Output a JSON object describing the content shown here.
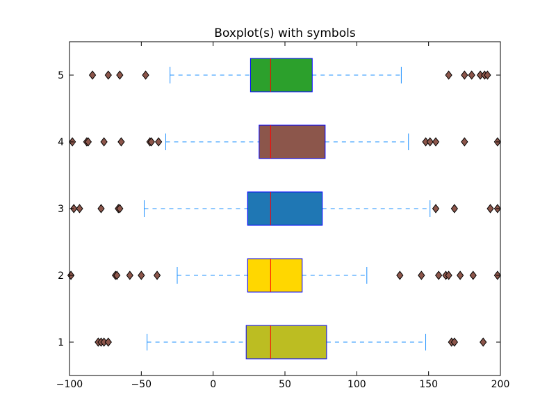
{
  "chart_data": {
    "type": "boxplot",
    "orientation": "horizontal",
    "title": "Boxplot(s) with symbols",
    "xlabel": "",
    "ylabel": "",
    "xlim": [
      -100,
      200
    ],
    "ylim": [
      0.5,
      5.5
    ],
    "x_ticks": [
      -100,
      -50,
      0,
      50,
      100,
      150,
      200
    ],
    "x_tick_labels": [
      "−100",
      "−50",
      "0",
      "50",
      "100",
      "150",
      "200"
    ],
    "y_ticks": [
      1,
      2,
      3,
      4,
      5
    ],
    "y_tick_labels": [
      "1",
      "2",
      "3",
      "4",
      "5"
    ],
    "grid": false,
    "median_color": "#ff0000",
    "box_edge_color": "#0000ff",
    "whisker_color": "#1e90ff",
    "flier_color": "#8c564b",
    "flier_marker": "diamond",
    "boxes": [
      {
        "position": 1,
        "whislo": -46,
        "q1": 23,
        "median": 40,
        "q3": 79,
        "whishi": 148,
        "fliers": [
          -80,
          -78,
          -76,
          -73,
          166,
          168,
          188
        ],
        "color": "#bcbd22"
      },
      {
        "position": 2,
        "whislo": -25,
        "q1": 24,
        "median": 40,
        "q3": 62,
        "whishi": 107,
        "fliers": [
          -99,
          -68,
          -67,
          -58,
          -50,
          -39,
          130,
          145,
          157,
          162,
          164,
          172,
          181,
          198
        ],
        "color": "#ffd700"
      },
      {
        "position": 3,
        "whislo": -48,
        "q1": 24,
        "median": 40,
        "q3": 76,
        "whishi": 151,
        "fliers": [
          -97,
          -93,
          -78,
          -66,
          -65,
          155,
          168,
          193,
          198
        ],
        "color": "#1f77b4"
      },
      {
        "position": 4,
        "whislo": -33,
        "q1": 32,
        "median": 40,
        "q3": 78,
        "whishi": 136,
        "fliers": [
          -98,
          -88,
          -87,
          -76,
          -64,
          -44,
          -43,
          -38,
          148,
          151,
          155,
          175,
          198
        ],
        "color": "#8c564b"
      },
      {
        "position": 5,
        "whislo": -30,
        "q1": 26,
        "median": 40,
        "q3": 69,
        "whishi": 131,
        "fliers": [
          -84,
          -73,
          -65,
          -47,
          164,
          175,
          180,
          186,
          189,
          191
        ],
        "color": "#2ca02c"
      }
    ]
  }
}
